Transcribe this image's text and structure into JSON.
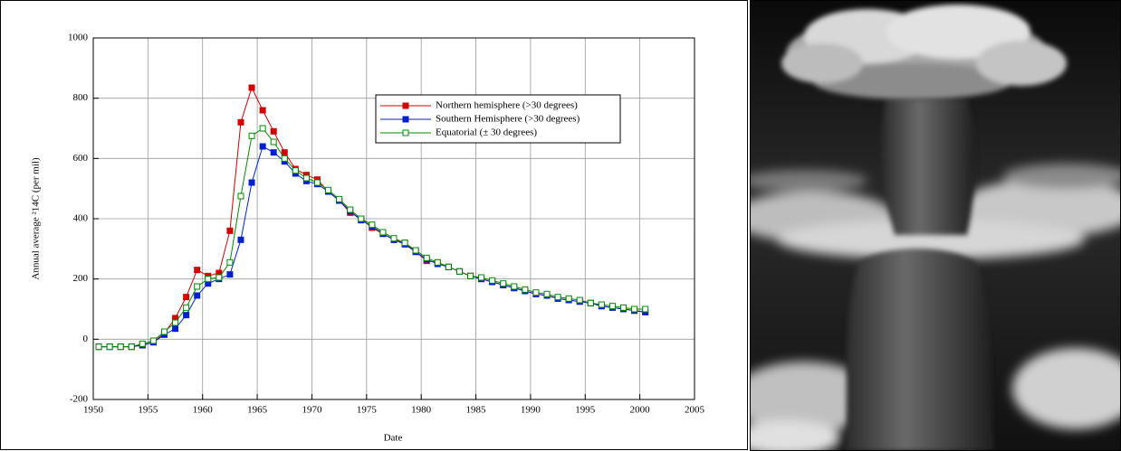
{
  "chart_data": {
    "type": "line",
    "xlabel": "Date",
    "ylabel": "Annual average ²14C (per mil)",
    "x": [
      1950.5,
      1951.5,
      1952.5,
      1953.5,
      1954.5,
      1955.5,
      1956.5,
      1957.5,
      1958.5,
      1959.5,
      1960.5,
      1961.5,
      1962.5,
      1963.5,
      1964.5,
      1965.5,
      1966.5,
      1967.5,
      1968.5,
      1969.5,
      1970.5,
      1971.5,
      1972.5,
      1973.5,
      1974.5,
      1975.5,
      1976.5,
      1977.5,
      1978.5,
      1979.5,
      1980.5,
      1981.5,
      1982.5,
      1983.5,
      1984.5,
      1985.5,
      1986.5,
      1987.5,
      1988.5,
      1989.5,
      1990.5,
      1991.5,
      1992.5,
      1993.5,
      1994.5,
      1995.5,
      1996.5,
      1997.5,
      1998.5,
      1999.5,
      2000.5
    ],
    "series": [
      {
        "name": "Northern hemisphere (>30 degrees)",
        "color": "#d40000",
        "marker": "filled",
        "values": [
          -25,
          -25,
          -25,
          -25,
          -20,
          -10,
          20,
          70,
          140,
          230,
          210,
          220,
          360,
          720,
          835,
          760,
          690,
          620,
          565,
          545,
          530,
          490,
          460,
          420,
          400,
          370,
          350,
          330,
          320,
          290,
          260,
          255,
          240,
          225,
          210,
          200,
          190,
          180,
          170,
          160,
          150,
          145,
          135,
          130,
          125,
          120,
          110,
          105,
          100,
          95,
          90
        ]
      },
      {
        "name": "Southern Hemisphere (>30 degrees)",
        "color": "#0020d0",
        "marker": "filled",
        "values": [
          -25,
          -25,
          -25,
          -25,
          -20,
          -10,
          15,
          35,
          80,
          145,
          185,
          200,
          215,
          330,
          520,
          640,
          620,
          590,
          550,
          525,
          515,
          490,
          460,
          425,
          395,
          375,
          350,
          330,
          315,
          290,
          265,
          250,
          240,
          225,
          210,
          200,
          190,
          180,
          170,
          160,
          150,
          145,
          135,
          130,
          125,
          120,
          110,
          105,
          100,
          95,
          90
        ]
      },
      {
        "name": "Equatorial (± 30 degrees)",
        "color": "#008a00",
        "marker": "hollow",
        "values": [
          -25,
          -25,
          -25,
          -25,
          -15,
          -5,
          25,
          55,
          105,
          175,
          200,
          205,
          255,
          475,
          675,
          700,
          655,
          600,
          560,
          535,
          520,
          495,
          465,
          430,
          400,
          380,
          355,
          335,
          320,
          295,
          270,
          255,
          240,
          225,
          210,
          205,
          195,
          185,
          175,
          165,
          155,
          150,
          140,
          135,
          130,
          120,
          115,
          110,
          105,
          100,
          100
        ]
      }
    ],
    "xlim": [
      1950,
      2005
    ],
    "xticks": [
      1950,
      1955,
      1960,
      1965,
      1970,
      1975,
      1980,
      1985,
      1990,
      1995,
      2000,
      2005
    ],
    "ylim": [
      -200,
      1000
    ],
    "yticks": [
      -200,
      0,
      200,
      400,
      600,
      800,
      1000
    ],
    "grid": true
  }
}
